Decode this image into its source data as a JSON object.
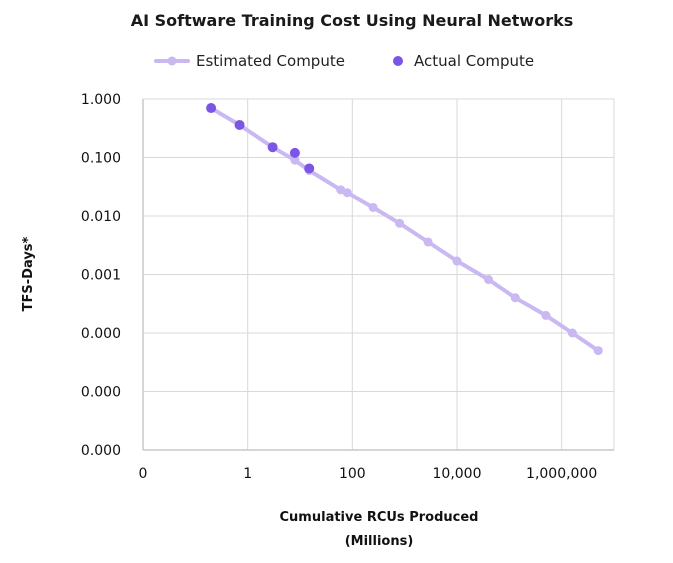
{
  "chart_data": {
    "type": "line",
    "title": "AI Software Training Cost Using Neural Networks",
    "xlabel": "Cumulative RCUs Produced",
    "xlabel_sub": "(Millions)",
    "ylabel": "TFS-Days*",
    "x_scale": "log",
    "y_scale": "log",
    "xlim": [
      0.01,
      10000000
    ],
    "ylim": [
      1e-06,
      1
    ],
    "x_tick_values": [
      0.01,
      1,
      100,
      10000,
      1000000
    ],
    "x_tick_labels": [
      "0",
      "1",
      "100",
      "10,000",
      "1,000,000"
    ],
    "y_tick_values": [
      1,
      0.1,
      0.01,
      0.001,
      0.0001,
      1e-05,
      1e-06
    ],
    "y_tick_labels": [
      "1.000",
      "0.100",
      "0.010",
      "0.001",
      "0.000",
      "0.000",
      "0.000"
    ],
    "grid": true,
    "legend_position": "top",
    "colors": {
      "estimated": "#c9b8f2",
      "actual": "#7b55e6",
      "grid": "#d9d9d9",
      "axis": "#c8c8c8"
    },
    "series": [
      {
        "name": "Estimated Compute",
        "style": "line-with-markers",
        "x": [
          0.2,
          0.7,
          3,
          8,
          15,
          60,
          80,
          250,
          800,
          2800,
          10000,
          40000,
          130000,
          500000,
          1600000,
          5000000
        ],
        "y": [
          0.7,
          0.36,
          0.15,
          0.09,
          0.06,
          0.028,
          0.025,
          0.014,
          0.0075,
          0.0036,
          0.0017,
          0.00082,
          0.0004,
          0.0002,
          0.0001,
          5e-05
        ]
      },
      {
        "name": "Actual Compute",
        "style": "markers",
        "x": [
          0.2,
          0.7,
          3,
          8,
          15
        ],
        "y": [
          0.7,
          0.36,
          0.15,
          0.12,
          0.065
        ]
      }
    ]
  }
}
